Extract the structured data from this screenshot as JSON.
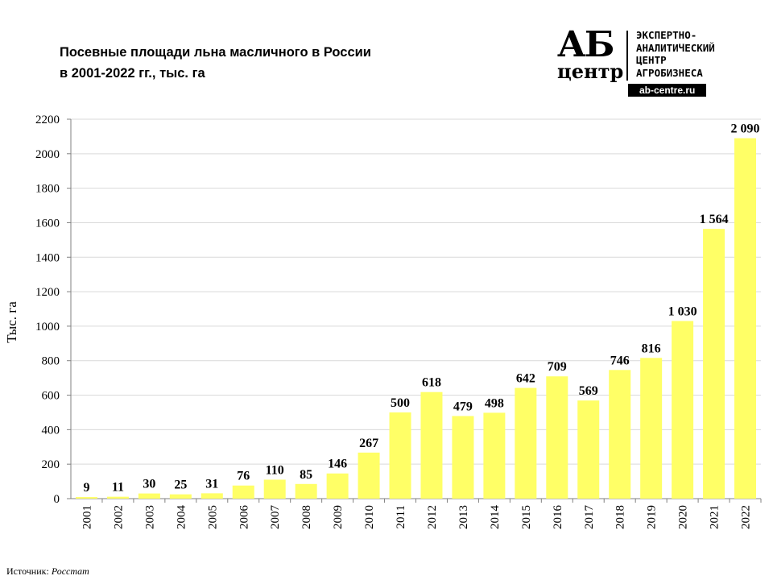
{
  "title_line1": "Посевные площади льна масличного в России",
  "title_line2": "в 2001-2022 гг., тыс. га",
  "logo": {
    "mark": "АБ",
    "mark2": "центр",
    "lines": [
      "ЭКСПЕРТНО-",
      "АНАЛИТИЧЕСКИЙ",
      "ЦЕНТР",
      "АГРОБИЗНЕСА"
    ],
    "url": "ab-centre.ru"
  },
  "source_label": "Источник:",
  "source_value": "Росстат",
  "chart_data": {
    "type": "bar",
    "title": "Посевные площади льна масличного в России в 2001-2022 гг., тыс. га",
    "xlabel": "",
    "ylabel": "Тыс. га",
    "ylim": [
      0,
      2200
    ],
    "yticks": [
      0,
      200,
      400,
      600,
      800,
      1000,
      1200,
      1400,
      1600,
      1800,
      2000,
      2200
    ],
    "grid": true,
    "categories": [
      "2001",
      "2002",
      "2003",
      "2004",
      "2005",
      "2006",
      "2007",
      "2008",
      "2009",
      "2010",
      "2011",
      "2012",
      "2013",
      "2014",
      "2015",
      "2016",
      "2017",
      "2018",
      "2019",
      "2020",
      "2021",
      "2022"
    ],
    "values": [
      9,
      11,
      30,
      25,
      31,
      76,
      110,
      85,
      146,
      267,
      500,
      618,
      479,
      498,
      642,
      709,
      569,
      746,
      816,
      1030,
      1564,
      2090
    ],
    "labels": [
      "9",
      "11",
      "30",
      "25",
      "31",
      "76",
      "110",
      "85",
      "146",
      "267",
      "500",
      "618",
      "479",
      "498",
      "642",
      "709",
      "569",
      "746",
      "816",
      "1 030",
      "1 564",
      "2 090"
    ],
    "bar_color": "#FFFF66"
  }
}
